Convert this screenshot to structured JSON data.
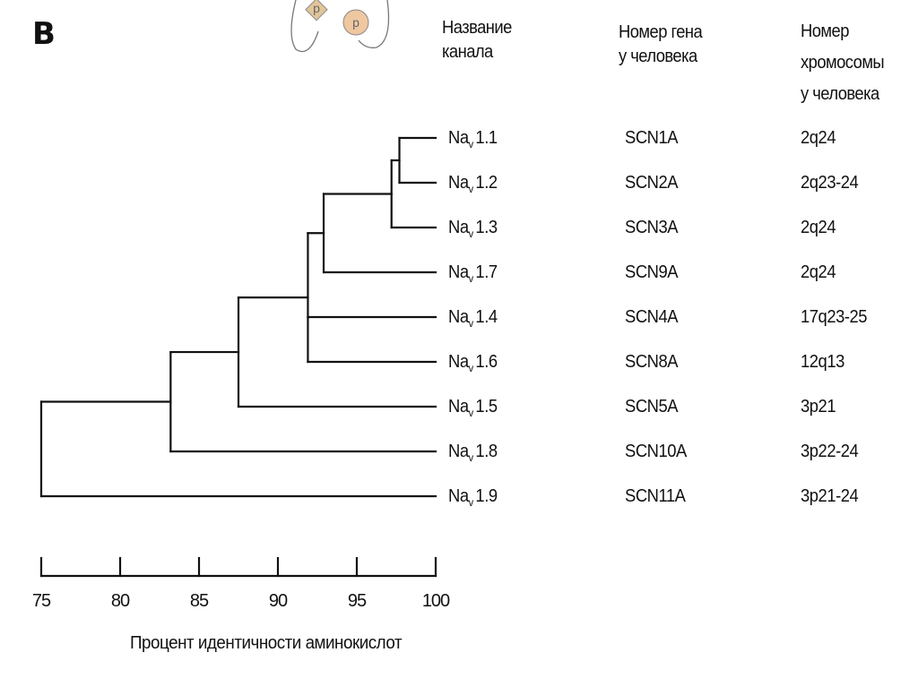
{
  "panel_letter": "B",
  "headers": {
    "channel": [
      "Название",
      "канала"
    ],
    "gene": [
      "Номер гена",
      "у человека"
    ],
    "chromosome": [
      "Номер",
      "хромосомы",
      "у человека"
    ]
  },
  "decor_letters": [
    "p",
    "p"
  ],
  "chart_data": {
    "type": "dendrogram",
    "xlabel": "Процент идентичности аминокислот",
    "xlim": [
      75,
      100
    ],
    "ticks": [
      "75",
      "80",
      "85",
      "90",
      "95",
      "100"
    ],
    "tick_values": [
      75,
      80,
      85,
      90,
      95,
      100
    ],
    "rows": [
      {
        "base": "Na",
        "sub": "v",
        "num": "1.1",
        "gene": "SCN1A",
        "chromosome": "2q24"
      },
      {
        "base": "Na",
        "sub": "v",
        "num": "1.2",
        "gene": "SCN2A",
        "chromosome": "2q23-24"
      },
      {
        "base": "Na",
        "sub": "v",
        "num": "1.3",
        "gene": "SCN3A",
        "chromosome": "2q24"
      },
      {
        "base": "Na",
        "sub": "v",
        "num": "1.7",
        "gene": "SCN9A",
        "chromosome": "2q24"
      },
      {
        "base": "Na",
        "sub": "v",
        "num": "1.4",
        "gene": "SCN4A",
        "chromosome": "17q23-25"
      },
      {
        "base": "Na",
        "sub": "v",
        "num": "1.6",
        "gene": "SCN8A",
        "chromosome": "12q13"
      },
      {
        "base": "Na",
        "sub": "v",
        "num": "1.5",
        "gene": "SCN5A",
        "chromosome": "3p21"
      },
      {
        "base": "Na",
        "sub": "v",
        "num": "1.8",
        "gene": "SCN10A",
        "chromosome": "3p22-24"
      },
      {
        "base": "Na",
        "sub": "v",
        "num": "1.9",
        "gene": "SCN11A",
        "chromosome": "3p21-24"
      }
    ],
    "tree": {
      "value": 75,
      "children": [
        {
          "value": 83.2,
          "children": [
            {
              "value": 87.5,
              "children": [
                {
                  "value": 91.9,
                  "children": [
                    {
                      "value": 92.9,
                      "children": [
                        {
                          "value": 97.2,
                          "children": [
                            {
                              "value": 97.7,
                              "children": [
                                {
                                  "leaf": 0
                                },
                                {
                                  "leaf": 1
                                }
                              ]
                            },
                            {
                              "leaf": 2
                            }
                          ]
                        },
                        {
                          "leaf": 3
                        }
                      ]
                    },
                    {
                      "leaf": 4
                    },
                    {
                      "leaf": 5
                    }
                  ]
                },
                {
                  "leaf": 6
                }
              ]
            },
            {
              "leaf": 7
            }
          ]
        },
        {
          "leaf": 8
        }
      ]
    }
  }
}
